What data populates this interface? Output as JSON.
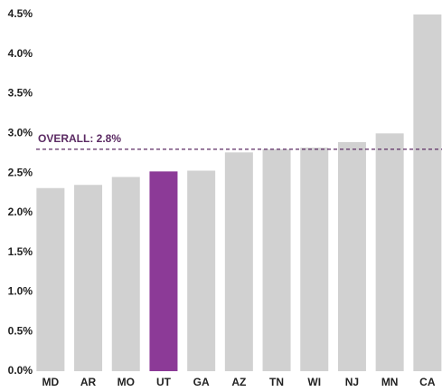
{
  "chart_data": {
    "type": "bar",
    "categories": [
      "MD",
      "AR",
      "MO",
      "UT",
      "GA",
      "AZ",
      "TN",
      "WI",
      "NJ",
      "MN",
      "CA"
    ],
    "values": [
      2.31,
      2.35,
      2.45,
      2.52,
      2.53,
      2.76,
      2.8,
      2.82,
      2.89,
      3.0,
      4.5
    ],
    "colors": [
      "#d1d1d1",
      "#d1d1d1",
      "#d1d1d1",
      "#8c3a97",
      "#d1d1d1",
      "#d1d1d1",
      "#d1d1d1",
      "#d1d1d1",
      "#d1d1d1",
      "#d1d1d1",
      "#d1d1d1"
    ],
    "ylim": [
      0,
      4.5
    ],
    "yticks": [
      {
        "value": 0,
        "label": "0.0%"
      },
      {
        "value": 0.5,
        "label": "0.5%"
      },
      {
        "value": 1,
        "label": "1.0%"
      },
      {
        "value": 1.5,
        "label": "1.5%"
      },
      {
        "value": 2,
        "label": "2.0%"
      },
      {
        "value": 2.5,
        "label": "2.5%"
      },
      {
        "value": 3,
        "label": "3.0%"
      },
      {
        "value": 3.5,
        "label": "3.5%"
      },
      {
        "value": 4,
        "label": "4.0%"
      },
      {
        "value": 4.5,
        "label": "4.5%"
      }
    ],
    "reference_line": {
      "value": 2.8,
      "label": "OVERALL: 2.8%",
      "color": "#5b2a63"
    }
  }
}
